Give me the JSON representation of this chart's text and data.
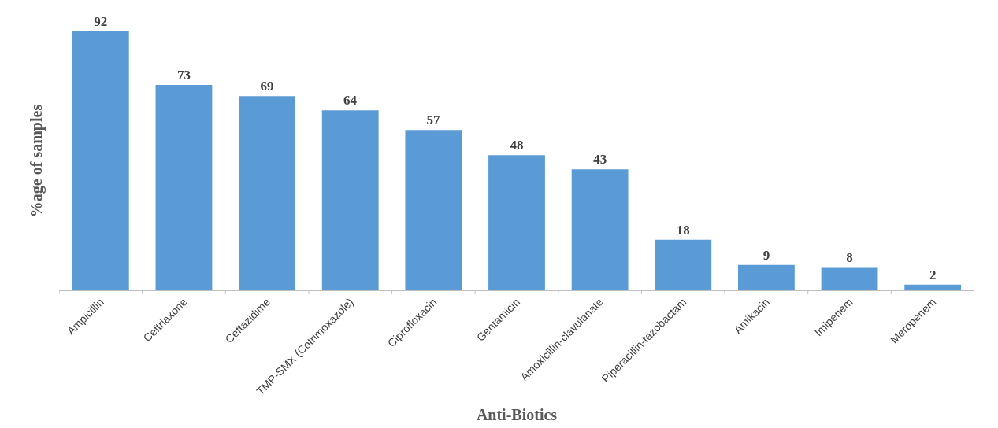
{
  "chart_data": {
    "type": "bar",
    "xlabel": "Anti-Biotics",
    "ylabel": "%age of samples",
    "categories": [
      "Ampicillin",
      "Ceftriaxone",
      "Ceftazidime",
      "TMP-SMX (Cotrimoxazole)",
      "Ciprofloxacin",
      "Gentamicin",
      "Amoxicillin-clavulanate",
      "Piperacillin-tazobactam",
      "Amikacin",
      "Imipenem",
      "Meropenem"
    ],
    "values": [
      92,
      73,
      69,
      64,
      57,
      48,
      43,
      18,
      9,
      8,
      2
    ],
    "color": "#5b9bd5",
    "data_labels": true
  }
}
